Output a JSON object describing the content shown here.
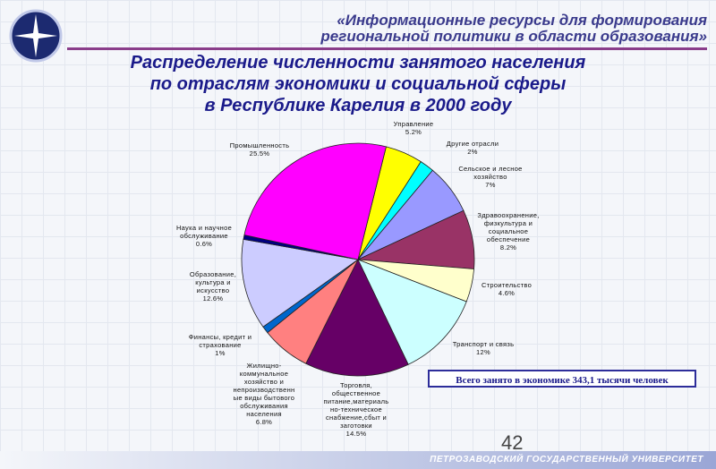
{
  "header": {
    "title": "«Информационные ресурсы для формирования\nрегиональной политики в области образования»"
  },
  "chart_data": {
    "type": "pie",
    "title": "Распределение численности занятого населения\nпо отраслям экономики и социальной сферы\nв Республике Карелия в 2000 году",
    "categories": [
      "Управление",
      "Другие отрасли",
      "Сельское и лесное\nхозяйство",
      "Здравоохранение,\nфизкультура и\nсоциальное\nобеспечение",
      "Строительство",
      "Транспорт и связь",
      "Торговля,\nобщественное\nпитание,материаль\nно-техническое\nснабжение,сбыт и\nзаготовки",
      "Жилищно-\nкоммунальное\nхозяйство и\nнепроизводственн\nые виды бытового\nобслуживания\nнаселения",
      "Финансы, кредит и\nстрахование",
      "Образование,\nкультура и\nискусство",
      "Наука и научное\nобслуживание",
      "Промышленность"
    ],
    "values": [
      5.2,
      2,
      7,
      8.2,
      4.6,
      12,
      14.5,
      6.8,
      1,
      12.6,
      0.6,
      25.5
    ],
    "value_labels": [
      "5.2%",
      "2%",
      "7%",
      "8.2%",
      "4.6%",
      "12%",
      "14.5%",
      "6.8%",
      "1%",
      "12.6%",
      "0.6%",
      "25.5%"
    ],
    "colors": [
      "#ffff00",
      "#00ffff",
      "#9999ff",
      "#993366",
      "#ffffcc",
      "#ccffff",
      "#660066",
      "#ff8080",
      "#0066cc",
      "#ccccff",
      "#000080",
      "#ff00ff"
    ],
    "annotation": "Всего занято в экономике 343,1 тысячи человек"
  },
  "footer": {
    "page_number": "42",
    "university": "ПЕТРОЗАВОДСКИЙ ГОСУДАРСТВЕННЫЙ УНИВЕРСИТЕТ"
  }
}
